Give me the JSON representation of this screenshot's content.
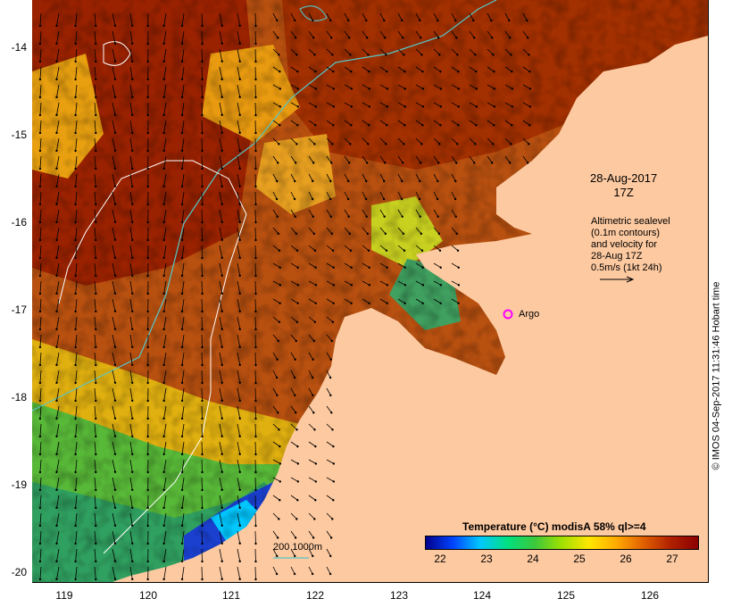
{
  "map": {
    "y_ticks": [
      "-14",
      "-15",
      "-16",
      "-17",
      "-18",
      "-19",
      "-20"
    ],
    "x_ticks": [
      "119",
      "120",
      "121",
      "122",
      "123",
      "124",
      "125",
      "126"
    ],
    "annotation": {
      "date": "28-Aug-2017",
      "time": "17Z",
      "sealevel_lines": [
        "Altimetric sealevel",
        "(0.1m contours)",
        "and velocity for",
        "28-Aug 17Z",
        "0.5m/s (1kt 24h)"
      ]
    },
    "argo_label": "Argo",
    "depth_legend": "200  1000m",
    "colorbar": {
      "title": "Temperature (°C) modisA 58% ql>=4",
      "ticks": [
        "22",
        "23",
        "24",
        "25",
        "26",
        "27"
      ],
      "colors": [
        "#00008b",
        "#0044ff",
        "#00c8ff",
        "#00e080",
        "#3cc83c",
        "#a0e000",
        "#ffe600",
        "#ffaa00",
        "#e06000",
        "#b02000",
        "#8b0000"
      ]
    },
    "credit": "© IMOS 04-Sep-2017 11:31:46 Hobart time",
    "colors": {
      "land": "#fdc9a0",
      "depth_200m": "#56c7c7",
      "depth_1000m": "#ffffff",
      "argo_marker": "#ff00ff"
    }
  }
}
